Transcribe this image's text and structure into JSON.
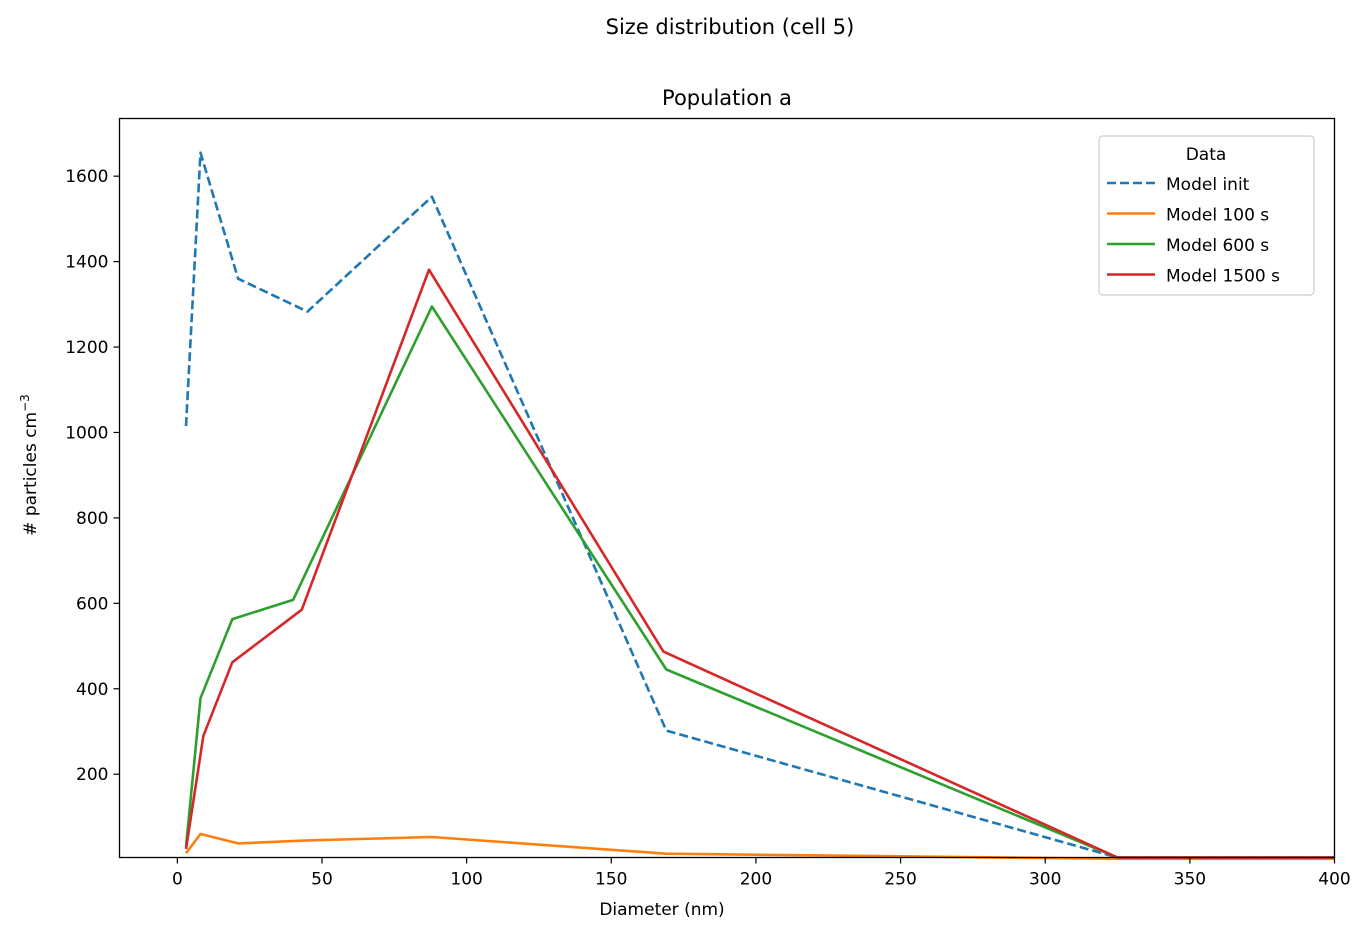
{
  "figure": {
    "suptitle": "Size distribution (cell 5)"
  },
  "chart_data": {
    "type": "line",
    "title": "Population a",
    "xlabel": "Diameter (nm)",
    "ylabel_main": "# particles cm",
    "ylabel_sup": "−3",
    "xlim": [
      -20,
      400
    ],
    "ylim": [
      5,
      1735
    ],
    "xticks": [
      0,
      50,
      100,
      150,
      200,
      250,
      300,
      350,
      400
    ],
    "yticks": [
      200,
      400,
      600,
      800,
      1000,
      1200,
      1400,
      1600
    ],
    "grid": false,
    "legend": {
      "title": "Data",
      "placement": "top-right"
    },
    "series": [
      {
        "name": "Model init",
        "color": "#1f77b4",
        "dashed": true,
        "x": [
          3,
          8,
          21,
          45,
          88,
          169,
          325,
          400
        ],
        "y": [
          1015,
          1655,
          1360,
          1283,
          1552,
          302,
          5,
          5
        ]
      },
      {
        "name": "Model 100 s",
        "color": "#ff7f0e",
        "dashed": false,
        "x": [
          3,
          8,
          21,
          45,
          88,
          169,
          325,
          400
        ],
        "y": [
          15,
          60,
          38,
          45,
          53,
          14,
          2,
          2
        ]
      },
      {
        "name": "Model 600 s",
        "color": "#2ca02c",
        "dashed": false,
        "x": [
          3,
          8,
          19,
          40,
          88,
          169,
          325,
          400
        ],
        "y": [
          30,
          378,
          563,
          608,
          1295,
          445,
          5,
          5
        ]
      },
      {
        "name": "Model 1500 s",
        "color": "#d62728",
        "dashed": false,
        "x": [
          3,
          9,
          19,
          43,
          87,
          168,
          325,
          400
        ],
        "y": [
          25,
          290,
          462,
          585,
          1381,
          487,
          5,
          5
        ]
      }
    ]
  }
}
